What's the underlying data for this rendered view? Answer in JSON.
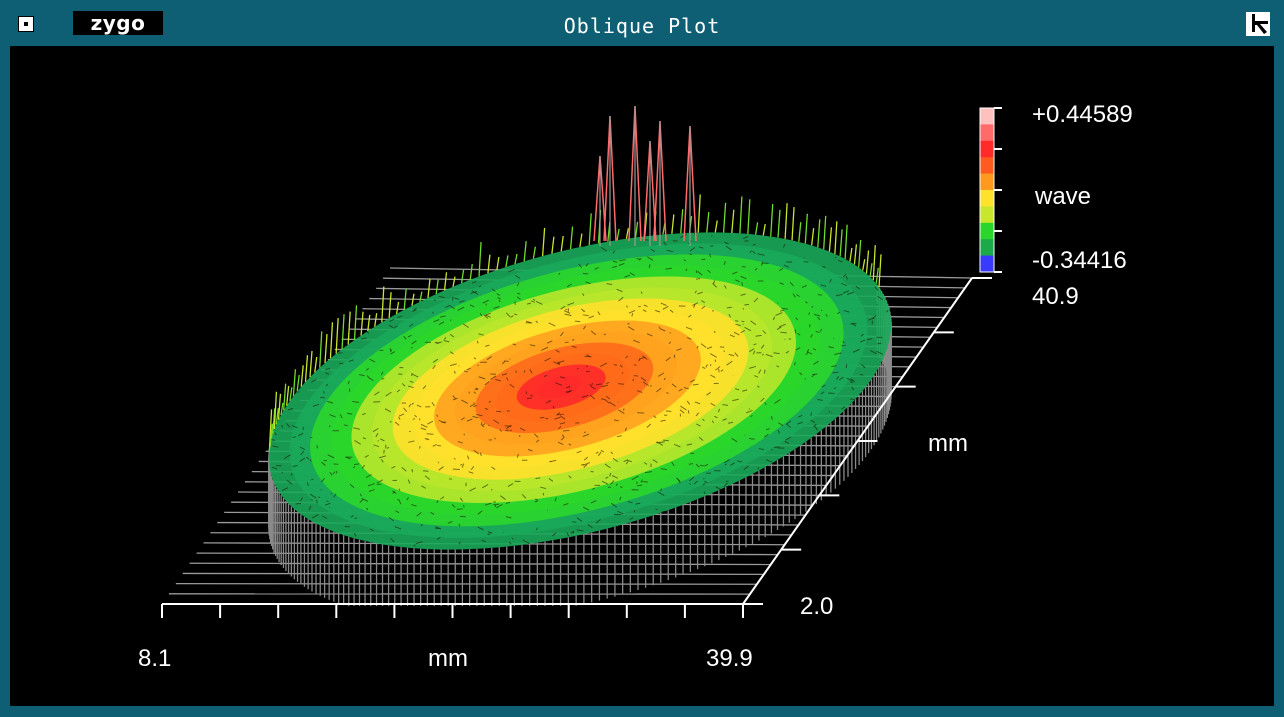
{
  "window": {
    "title": "Oblique Plot",
    "logo": "zygo",
    "menu_icon": "window-menu-icon",
    "resize_icon": "resize-corner-icon"
  },
  "plot": {
    "colorbar": {
      "max_label": "+0.44589",
      "unit": "wave",
      "min_label": "-0.34416",
      "y_top_label": "40.9",
      "colors": [
        "#3a3aff",
        "#1aaa4a",
        "#2bd62b",
        "#c8e62b",
        "#ffe22b",
        "#ff9a1f",
        "#ff5a1f",
        "#ff2a2a",
        "#ff6a6a",
        "#ffc0c0"
      ]
    },
    "x_axis": {
      "min_label": "8.1",
      "label": "mm",
      "max_label": "39.9"
    },
    "y_axis": {
      "label": "mm",
      "min_label": "2.0"
    }
  }
}
